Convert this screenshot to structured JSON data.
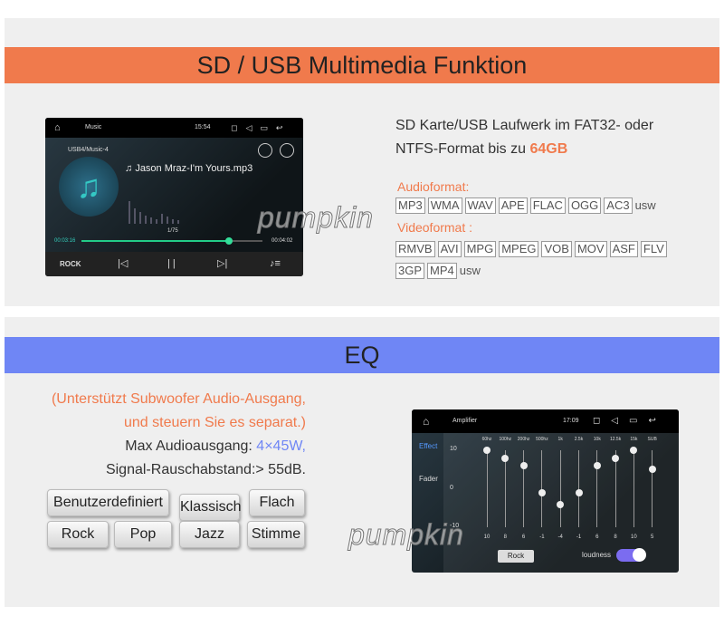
{
  "section1": {
    "title": "SD / USB Multimedia Funktion",
    "description_line1": "SD Karte/USB Laufwerk im FAT32- oder",
    "description_line2": "NTFS-Format bis zu",
    "description_highlight": "64GB",
    "audio_label": "Audioformat:",
    "audio_formats": [
      "MP3",
      "WMA",
      "WAV",
      "APE",
      "FLAC",
      "OGG",
      "AC3"
    ],
    "audio_suffix": "usw",
    "video_label": "Videoformat :",
    "video_formats": [
      "RMVB",
      "AVI",
      "MPG",
      "MPEG",
      "VOB",
      "MOV",
      "ASF",
      "FLV",
      "3GP",
      "MP4"
    ],
    "video_suffix": "usw"
  },
  "player": {
    "app": "Music",
    "time": "15:54",
    "source": "USB4/Music-4",
    "track": "Jason Mraz-I'm Yours.mp3",
    "position": "1/75",
    "elapsed": "00:03:16",
    "duration": "00:04:02",
    "preset": "ROCK"
  },
  "watermark": "pumpkin",
  "section2": {
    "title": "EQ",
    "note_line1": "(Unterstützt Subwoofer Audio-Ausgang,",
    "note_line2": "und steuern Sie es separat.)",
    "power_label": "Max Audioausgang:",
    "power_value": "4×45W,",
    "snr": "Signal-Rauschabstand:> 55dB.",
    "presets": [
      "Benutzerdefiniert",
      "Klassisch",
      "Flach",
      "Rock",
      "Pop",
      "Jazz",
      "Stimme"
    ]
  },
  "amplifier": {
    "app": "Amplifier",
    "time": "17:09",
    "menu": [
      "Effect",
      "Fader"
    ],
    "scale": [
      10,
      0,
      -10
    ],
    "bands": [
      "60hz",
      "100hz",
      "200hz",
      "500hz",
      "1k",
      "2.5k",
      "10k",
      "12.5k",
      "15k",
      "SUB"
    ],
    "values": [
      10,
      8,
      6,
      -1,
      -4,
      -1,
      6,
      8,
      10,
      5
    ],
    "preset": "Rock",
    "loudness": "loudness"
  }
}
